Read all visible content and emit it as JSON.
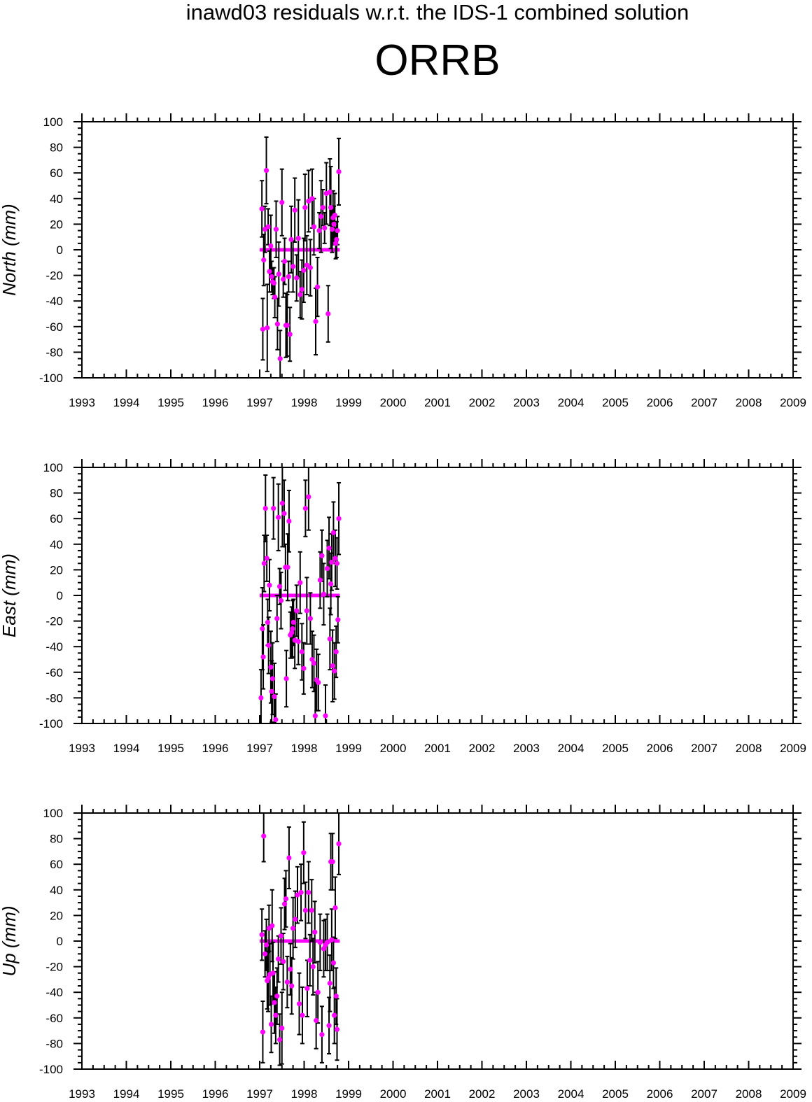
{
  "header": {
    "title": "inawd03 residuals w.r.t. the IDS-1 combined solution",
    "station": "ORRB"
  },
  "colors": {
    "points": "#ff00ff",
    "error_bars": "#000000",
    "frame": "#000000"
  },
  "chart_data": [
    {
      "type": "scatter",
      "ylabel": "North (mm)",
      "xlim": [
        1993,
        2009
      ],
      "ylim": [
        -100,
        100
      ],
      "x_ticks": [
        "1993",
        "1994",
        "1995",
        "1996",
        "1997",
        "1998",
        "1999",
        "2000",
        "2001",
        "2002",
        "2003",
        "2004",
        "2005",
        "2006",
        "2007",
        "2008",
        "2009"
      ],
      "y_ticks": [
        "100",
        "80",
        "60",
        "40",
        "20",
        "0",
        "-20",
        "-40",
        "-60",
        "-80",
        "-100"
      ],
      "zero_line": {
        "x": [
          1997.0,
          1998.8
        ],
        "y": 0
      },
      "points": [
        [
          1997.05,
          32,
          22
        ],
        [
          1997.07,
          -62,
          24
        ],
        [
          1997.09,
          -8,
          20
        ],
        [
          1997.12,
          16,
          18
        ],
        [
          1997.15,
          62,
          26
        ],
        [
          1997.17,
          -61,
          34
        ],
        [
          1997.19,
          18,
          14
        ],
        [
          1997.22,
          -17,
          16
        ],
        [
          1997.25,
          3,
          24
        ],
        [
          1997.27,
          -21,
          12
        ],
        [
          1997.29,
          -25,
          10
        ],
        [
          1997.32,
          -26,
          12
        ],
        [
          1997.34,
          -37,
          16
        ],
        [
          1997.37,
          16,
          22
        ],
        [
          1997.4,
          -58,
          20
        ],
        [
          1997.43,
          -19,
          25
        ],
        [
          1997.46,
          -85,
          22
        ],
        [
          1997.5,
          37,
          26
        ],
        [
          1997.53,
          -23,
          14
        ],
        [
          1997.56,
          -9,
          18
        ],
        [
          1997.59,
          -59,
          25
        ],
        [
          1997.62,
          -59,
          24
        ],
        [
          1997.65,
          -21,
          12
        ],
        [
          1997.68,
          -66,
          21
        ],
        [
          1997.71,
          8,
          26
        ],
        [
          1997.75,
          -13,
          20
        ],
        [
          1997.79,
          31,
          25
        ],
        [
          1997.83,
          -22,
          18
        ],
        [
          1997.87,
          9,
          30
        ],
        [
          1997.91,
          -35,
          18
        ],
        [
          1997.95,
          -31,
          23
        ],
        [
          1997.99,
          -16,
          25
        ],
        [
          1998.02,
          33,
          26
        ],
        [
          1998.06,
          -12,
          23
        ],
        [
          1998.1,
          38,
          24
        ],
        [
          1998.14,
          -14,
          22
        ],
        [
          1998.18,
          40,
          23
        ],
        [
          1998.22,
          18,
          22
        ],
        [
          1998.26,
          -56,
          26
        ],
        [
          1998.3,
          -29,
          23
        ],
        [
          1998.34,
          15,
          14
        ],
        [
          1998.38,
          26,
          28
        ],
        [
          1998.42,
          33,
          14
        ],
        [
          1998.46,
          17,
          12
        ],
        [
          1998.5,
          44,
          24
        ],
        [
          1998.54,
          -50,
          22
        ],
        [
          1998.58,
          45,
          26
        ],
        [
          1998.6,
          33,
          32
        ],
        [
          1998.63,
          16,
          18
        ],
        [
          1998.65,
          25,
          21
        ],
        [
          1998.67,
          20,
          14
        ],
        [
          1998.69,
          27,
          17
        ],
        [
          1998.71,
          5,
          12
        ],
        [
          1998.73,
          8,
          14
        ],
        [
          1998.75,
          15,
          11
        ],
        [
          1998.78,
          61,
          26
        ]
      ]
    },
    {
      "type": "scatter",
      "ylabel": "East (mm)",
      "xlim": [
        1993,
        2009
      ],
      "ylim": [
        -100,
        100
      ],
      "x_ticks": [
        "1993",
        "1994",
        "1995",
        "1996",
        "1997",
        "1998",
        "1999",
        "2000",
        "2001",
        "2002",
        "2003",
        "2004",
        "2005",
        "2006",
        "2007",
        "2008",
        "2009"
      ],
      "y_ticks": [
        "100",
        "80",
        "60",
        "40",
        "20",
        "0",
        "-20",
        "-40",
        "-60",
        "-80",
        "-100"
      ],
      "zero_line": {
        "x": [
          1997.0,
          1998.8
        ],
        "y": 0
      },
      "points": [
        [
          1997.03,
          -80,
          22
        ],
        [
          1997.06,
          -26,
          32
        ],
        [
          1997.08,
          -48,
          25
        ],
        [
          1997.1,
          25,
          22
        ],
        [
          1997.13,
          68,
          26
        ],
        [
          1997.16,
          29,
          18
        ],
        [
          1997.18,
          -21,
          18
        ],
        [
          1997.2,
          -39,
          22
        ],
        [
          1997.22,
          8,
          20
        ],
        [
          1997.25,
          -56,
          28
        ],
        [
          1997.27,
          -75,
          24
        ],
        [
          1997.29,
          -65,
          28
        ],
        [
          1997.31,
          68,
          24
        ],
        [
          1997.33,
          -79,
          26
        ],
        [
          1997.36,
          -97,
          20
        ],
        [
          1997.39,
          -18,
          18
        ],
        [
          1997.42,
          61,
          26
        ],
        [
          1997.45,
          7,
          14
        ],
        [
          1997.48,
          -4,
          22
        ],
        [
          1997.51,
          72,
          34
        ],
        [
          1997.55,
          64,
          26
        ],
        [
          1997.58,
          22,
          18
        ],
        [
          1997.6,
          -65,
          22
        ],
        [
          1997.63,
          22,
          26
        ],
        [
          1997.66,
          58,
          24
        ],
        [
          1997.69,
          -31,
          18
        ],
        [
          1997.72,
          -29,
          20
        ],
        [
          1997.74,
          -26,
          22
        ],
        [
          1997.76,
          -21,
          18
        ],
        [
          1997.79,
          -35,
          22
        ],
        [
          1997.83,
          -12,
          20
        ],
        [
          1997.87,
          -36,
          18
        ],
        [
          1997.91,
          10,
          24
        ],
        [
          1997.95,
          -44,
          22
        ],
        [
          1997.99,
          -57,
          20
        ],
        [
          1998.03,
          68,
          22
        ],
        [
          1998.06,
          -12,
          26
        ],
        [
          1998.1,
          77,
          26
        ],
        [
          1998.14,
          -18,
          20
        ],
        [
          1998.18,
          -50,
          22
        ],
        [
          1998.22,
          -53,
          22
        ],
        [
          1998.25,
          -94,
          26
        ],
        [
          1998.28,
          -66,
          24
        ],
        [
          1998.32,
          -68,
          22
        ],
        [
          1998.36,
          12,
          22
        ],
        [
          1998.4,
          31,
          20
        ],
        [
          1998.44,
          1,
          24
        ],
        [
          1998.48,
          -94,
          24
        ],
        [
          1998.52,
          21,
          22
        ],
        [
          1998.56,
          37,
          24
        ],
        [
          1998.58,
          -34,
          24
        ],
        [
          1998.6,
          9,
          24
        ],
        [
          1998.62,
          26,
          22
        ],
        [
          1998.64,
          -55,
          28
        ],
        [
          1998.66,
          49,
          24
        ],
        [
          1998.68,
          -59,
          22
        ],
        [
          1998.7,
          29,
          22
        ],
        [
          1998.72,
          -44,
          20
        ],
        [
          1998.74,
          25,
          20
        ],
        [
          1998.76,
          -19,
          18
        ],
        [
          1998.78,
          60,
          28
        ]
      ]
    },
    {
      "type": "scatter",
      "ylabel": "Up (mm)",
      "xlim": [
        1993,
        2009
      ],
      "ylim": [
        -100,
        100
      ],
      "x_ticks": [
        "1993",
        "1994",
        "1995",
        "1996",
        "1997",
        "1998",
        "1999",
        "2000",
        "2001",
        "2002",
        "2003",
        "2004",
        "2005",
        "2006",
        "2007",
        "2008",
        "2009"
      ],
      "y_ticks": [
        "100",
        "80",
        "60",
        "40",
        "20",
        "0",
        "-20",
        "-40",
        "-60",
        "-80",
        "-100"
      ],
      "zero_line": {
        "x": [
          1997.0,
          1998.8
        ],
        "y": 0
      },
      "points": [
        [
          1997.05,
          5,
          20
        ],
        [
          1997.07,
          -71,
          24
        ],
        [
          1997.09,
          82,
          20
        ],
        [
          1997.12,
          -10,
          18
        ],
        [
          1997.15,
          -3,
          20
        ],
        [
          1997.17,
          -31,
          22
        ],
        [
          1997.19,
          -29,
          26
        ],
        [
          1997.21,
          10,
          18
        ],
        [
          1997.23,
          -26,
          24
        ],
        [
          1997.26,
          -65,
          22
        ],
        [
          1997.28,
          12,
          28
        ],
        [
          1997.3,
          -25,
          24
        ],
        [
          1997.33,
          -48,
          24
        ],
        [
          1997.36,
          -58,
          22
        ],
        [
          1997.39,
          -43,
          22
        ],
        [
          1997.42,
          -14,
          18
        ],
        [
          1997.45,
          -77,
          20
        ],
        [
          1997.48,
          4,
          22
        ],
        [
          1997.5,
          -68,
          28
        ],
        [
          1997.53,
          -16,
          22
        ],
        [
          1997.56,
          29,
          20
        ],
        [
          1997.59,
          33,
          22
        ],
        [
          1997.62,
          -32,
          20
        ],
        [
          1997.66,
          65,
          24
        ],
        [
          1997.69,
          -22,
          20
        ],
        [
          1997.72,
          -35,
          22
        ],
        [
          1997.75,
          10,
          24
        ],
        [
          1997.8,
          17,
          22
        ],
        [
          1997.85,
          36,
          22
        ],
        [
          1997.89,
          -49,
          24
        ],
        [
          1997.93,
          38,
          22
        ],
        [
          1997.96,
          -58,
          22
        ],
        [
          1997.99,
          69,
          24
        ],
        [
          1998.03,
          24,
          22
        ],
        [
          1998.07,
          -37,
          22
        ],
        [
          1998.1,
          38,
          24
        ],
        [
          1998.13,
          -15,
          20
        ],
        [
          1998.17,
          24,
          24
        ],
        [
          1998.2,
          -20,
          22
        ],
        [
          1998.24,
          7,
          24
        ],
        [
          1998.27,
          -62,
          22
        ],
        [
          1998.31,
          -40,
          24
        ],
        [
          1998.36,
          -1,
          22
        ],
        [
          1998.4,
          -73,
          22
        ],
        [
          1998.44,
          -6,
          22
        ],
        [
          1998.48,
          -3,
          20
        ],
        [
          1998.52,
          -1,
          22
        ],
        [
          1998.56,
          -66,
          22
        ],
        [
          1998.58,
          -33,
          22
        ],
        [
          1998.6,
          62,
          22
        ],
        [
          1998.62,
          1,
          24
        ],
        [
          1998.64,
          62,
          22
        ],
        [
          1998.66,
          -17,
          20
        ],
        [
          1998.68,
          -58,
          22
        ],
        [
          1998.7,
          26,
          24
        ],
        [
          1998.72,
          -43,
          22
        ],
        [
          1998.74,
          -69,
          24
        ],
        [
          1998.78,
          76,
          24
        ]
      ]
    }
  ]
}
